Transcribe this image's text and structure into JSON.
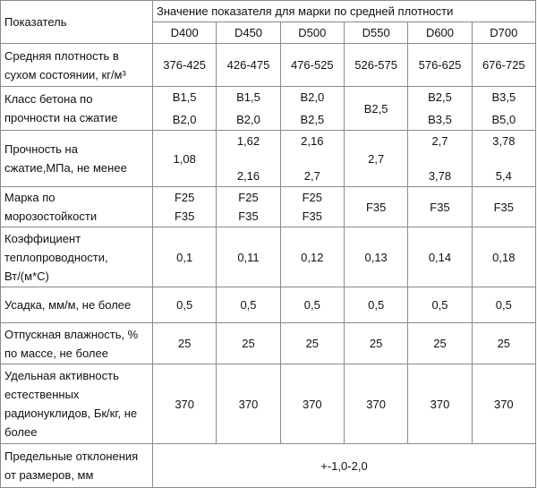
{
  "table": {
    "header": {
      "label": "Показатель",
      "group": "Значение показателя для марки по средней плотности",
      "columns": [
        "D400",
        "D450",
        "D500",
        "D550",
        "D600",
        "D700"
      ]
    },
    "rows": [
      {
        "label": "Средняя плотность в сухом состоянии, кг/м³",
        "cells": [
          [
            "376-425"
          ],
          [
            "426-475"
          ],
          [
            "476-525"
          ],
          [
            "526-575"
          ],
          [
            "576-625"
          ],
          [
            "676-725"
          ]
        ]
      },
      {
        "label": "Класс бетона по прочности на сжатие",
        "cells": [
          [
            "B1,5",
            "B2,0"
          ],
          [
            "B1,5",
            "B2,0"
          ],
          [
            "B2,0",
            "B2,5"
          ],
          [
            "B2,5"
          ],
          [
            "B2,5",
            "B3,5"
          ],
          [
            "B3,5",
            "B5,0"
          ]
        ]
      },
      {
        "label": "Прочность на сжатие,МПа, не менее",
        "cells": [
          [
            "1,08"
          ],
          [
            "1,62",
            "2,16"
          ],
          [
            "2,16",
            "2,7"
          ],
          [
            "2,7"
          ],
          [
            "2,7",
            "3,78"
          ],
          [
            "3,78",
            "5,4"
          ]
        ]
      },
      {
        "label": "Марка по морозостойкости",
        "cells": [
          [
            "F25",
            "F35"
          ],
          [
            "F25",
            "F35"
          ],
          [
            "F25",
            "F35"
          ],
          [
            "F35"
          ],
          [
            "F35"
          ],
          [
            "F35"
          ]
        ]
      },
      {
        "label": "Коэффициент теплопроводности, Вт/(м*С)",
        "cells": [
          [
            "0,1"
          ],
          [
            "0,11"
          ],
          [
            "0,12"
          ],
          [
            "0,13"
          ],
          [
            "0,14"
          ],
          [
            "0,18"
          ]
        ]
      },
      {
        "label": "Усадка, мм/м, не более",
        "cells": [
          [
            "0,5"
          ],
          [
            "0,5"
          ],
          [
            "0,5"
          ],
          [
            "0,5"
          ],
          [
            "0,5"
          ],
          [
            "0,5"
          ]
        ]
      },
      {
        "label": "Отпускная влажность, % по массе, не более",
        "cells": [
          [
            "25"
          ],
          [
            "25"
          ],
          [
            "25"
          ],
          [
            "25"
          ],
          [
            "25"
          ],
          [
            "25"
          ]
        ]
      },
      {
        "label": "Удельная активность естественных радионуклидов, Бк/кг, не более",
        "cells": [
          [
            "370"
          ],
          [
            "370"
          ],
          [
            "370"
          ],
          [
            "370"
          ],
          [
            "370"
          ],
          [
            "370"
          ]
        ]
      },
      {
        "label": "Предельные отклонения от размеров, мм",
        "cells": [
          [
            "+-1,0-2,0"
          ]
        ]
      }
    ]
  }
}
